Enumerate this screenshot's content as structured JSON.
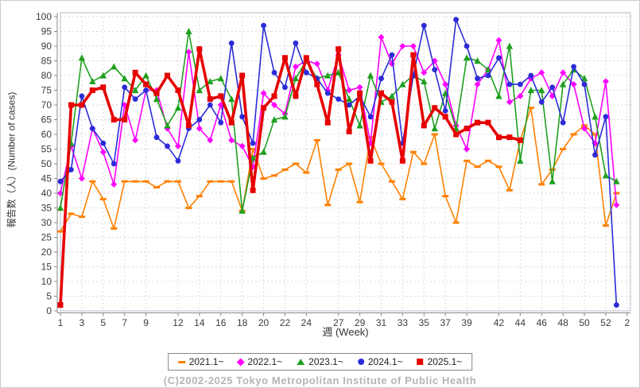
{
  "footer": {
    "copyright": "(C)2002-2025 Tokyo Metropolitan Institute of Public Health"
  },
  "chart_data": {
    "type": "line",
    "title": "",
    "xlabel": "週 (Week)",
    "ylabel": "報告数（人）(Number of cases)",
    "ylim": [
      0,
      100
    ],
    "y_tick_interval": 5,
    "grid": true,
    "legend_position": "bottom",
    "x_axis_weeks_range": [
      1,
      53
    ],
    "x_tick_weeks": [
      1,
      3,
      5,
      7,
      9,
      12,
      14,
      16,
      18,
      20,
      22,
      24,
      27,
      29,
      31,
      33,
      35,
      37,
      39,
      42,
      44,
      46,
      48,
      50,
      52,
      54
    ],
    "x_tick_labels": [
      "1",
      "3",
      "5",
      "7",
      "9",
      "12",
      "14",
      "16",
      "18",
      "20",
      "22",
      "24",
      "27",
      "29",
      "31",
      "33",
      "35",
      "37",
      "39",
      "42",
      "44",
      "46",
      "48",
      "50",
      "52",
      "2"
    ],
    "colors": {
      "grid": "#d9d9d9",
      "plot_border": "#b8b8cc",
      "zero_line": "#8c8cd8",
      "axis": "#888888",
      "tick_text": "#3b3b3b"
    },
    "series": [
      {
        "name": "2021.1~",
        "color": "#ff8000",
        "marker": "dash",
        "line_width": 1.6,
        "values": [
          27,
          33,
          32,
          44,
          38,
          28,
          44,
          44,
          44,
          42,
          44,
          44,
          35,
          39,
          44,
          44,
          44,
          34,
          55,
          45,
          46,
          48,
          50,
          47,
          58,
          36,
          48,
          50,
          37,
          59,
          50,
          44,
          38,
          54,
          50,
          60,
          39,
          30,
          51,
          49,
          51,
          49,
          41,
          58,
          69,
          43,
          48,
          55,
          60,
          63,
          60,
          29,
          40
        ]
      },
      {
        "name": "2022.1~",
        "color": "#ff00ff",
        "marker": "diamond",
        "line_width": 1.6,
        "values": [
          40,
          56,
          45,
          62,
          54,
          43,
          70,
          58,
          75,
          75,
          62,
          56,
          88,
          62,
          58,
          70,
          58,
          56,
          49,
          74,
          70,
          67,
          83,
          85,
          84,
          75,
          87,
          75,
          76,
          57,
          93,
          84,
          90,
          90,
          81,
          85,
          77,
          63,
          55,
          77,
          82,
          92,
          71,
          73,
          79,
          81,
          73,
          81,
          77,
          62,
          57,
          78,
          36
        ]
      },
      {
        "name": "2023.1~",
        "color": "#1fa01f",
        "marker": "triangle",
        "line_width": 1.6,
        "values": [
          35,
          57,
          86,
          78,
          80,
          83,
          79,
          75,
          80,
          72,
          63,
          69,
          95,
          75,
          78,
          79,
          72,
          34,
          52,
          54,
          65,
          66,
          79,
          85,
          79,
          80,
          81,
          72,
          63,
          80,
          71,
          73,
          77,
          80,
          78,
          62,
          74,
          62,
          86,
          85,
          82,
          73,
          90,
          51,
          75,
          75,
          44,
          77,
          82,
          79,
          66,
          46,
          44
        ]
      },
      {
        "name": "2024.1~",
        "color": "#2b2bd9",
        "marker": "circle",
        "line_width": 1.6,
        "values": [
          44,
          48,
          73,
          62,
          57,
          50,
          76,
          72,
          75,
          59,
          56,
          51,
          62,
          65,
          70,
          64,
          91,
          66,
          57,
          97,
          81,
          76,
          91,
          81,
          79,
          74,
          72,
          70,
          73,
          66,
          79,
          87,
          57,
          80,
          97,
          82,
          68,
          99,
          90,
          79,
          80,
          86,
          77,
          77,
          80,
          71,
          76,
          64,
          83,
          77,
          53,
          66,
          2
        ]
      },
      {
        "name": "2025.1~",
        "color": "#e60000",
        "marker": "square",
        "line_width": 3.6,
        "values": [
          2,
          70,
          70,
          75,
          76,
          65,
          65,
          81,
          77,
          74,
          80,
          75,
          63,
          89,
          72,
          73,
          64,
          80,
          41,
          69,
          73,
          86,
          73,
          86,
          77,
          64,
          89,
          61,
          74,
          51,
          74,
          71,
          51,
          87,
          63,
          69,
          66,
          60,
          62,
          64,
          64,
          59,
          59,
          58
        ]
      }
    ]
  }
}
